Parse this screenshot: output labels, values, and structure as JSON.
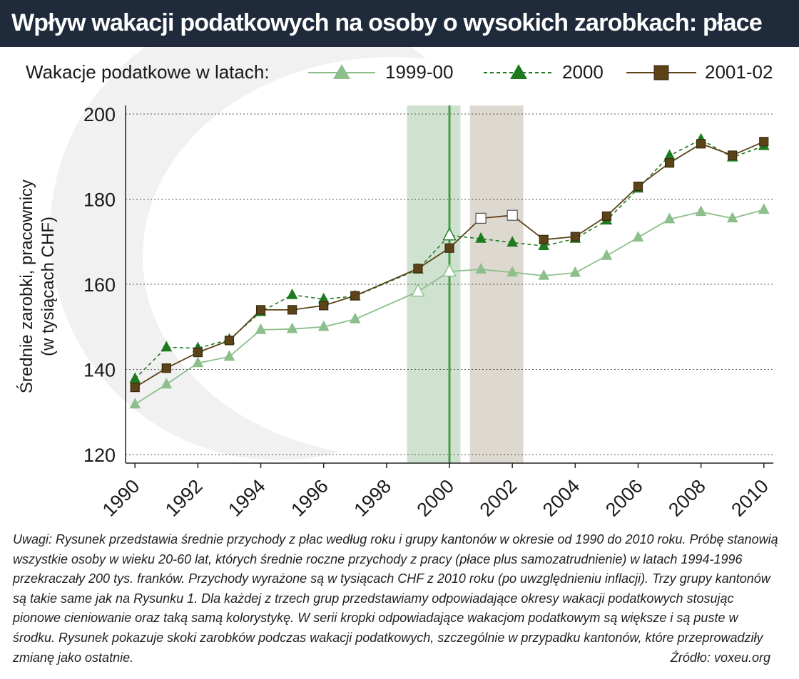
{
  "title": "Wpływ wakacji podatkowych na osoby o wysokich zarobkach: płace",
  "legend": {
    "title": "Wakacje podatkowe w latach:",
    "items": [
      {
        "label": "1999-00",
        "marker": "triangle-light",
        "line": "solid"
      },
      {
        "label": "2000",
        "marker": "triangle-dark",
        "line": "dashed"
      },
      {
        "label": "2001-02",
        "marker": "square-brown",
        "line": "solid"
      }
    ]
  },
  "ylabel_lines": [
    "Średnie zarobki, pracownicy",
    "(w tysiącach CHF)"
  ],
  "notes": "Uwagi: Rysunek przedstawia średnie przychody z płac według roku i grupy kantonów w okresie od 1990 do 2010 roku. Próbę stanowią wszystkie osoby w wieku 20-60 lat, których średnie roczne przychody z pracy (płace plus samozatrudnienie) w latach 1994-1996 przekraczały 200 tys. franków. Przychody wyrażone są w tysiącach CHF z 2010 roku (po uwzględnieniu inflacji). Trzy grupy kantonów są takie same jak na Rysunku 1. Dla każdej z trzech grup przedstawiamy odpowiadające okresy wakacji podatkowych stosując pionowe cieniowanie oraz taką samą kolorystykę. W serii kropki odpowiadające wakacjom podatkowym są większe i są puste w środku. Rysunek pokazuje skoki zarobków podczas wakacji podatkowych, szczególnie w przypadku kantonów, które przeprowadziły zmianę jako ostatnie.",
  "source": "Źródło: voxeu.org",
  "colors": {
    "title_bg": "#1f2a3a",
    "series_light": "#8cbf8c",
    "series_dark": "#1e7a1e",
    "series_brown": "#5c4318",
    "shade_green": "#cfe2cf",
    "shade_gray": "#ddd8d0",
    "vline": "#4c9a4c"
  },
  "chart_data": {
    "type": "line",
    "x": [
      1990,
      1991,
      1992,
      1993,
      1994,
      1995,
      1996,
      1997,
      1998,
      1999,
      2000,
      2001,
      2002,
      2003,
      2004,
      2005,
      2006,
      2007,
      2008,
      2009,
      2010
    ],
    "xticks": [
      1990,
      1992,
      1994,
      1996,
      1998,
      2000,
      2002,
      2004,
      2006,
      2008,
      2010
    ],
    "xtick_labels": [
      "1990",
      "1992",
      "1994",
      "1996",
      "1998",
      "2000",
      "2002",
      "2004",
      "2006",
      "2008",
      "2010"
    ],
    "yticks": [
      120,
      140,
      160,
      180,
      200
    ],
    "ytick_labels": [
      "120",
      "140",
      "160",
      "180",
      "200"
    ],
    "ylim": [
      118,
      202
    ],
    "xlim": [
      1989.7,
      2010.3
    ],
    "ylabel": "Średnie zarobki, pracownicy (w tysiącach CHF)",
    "xlabel": "",
    "grid": "horizontal-dotted",
    "legend_position": "top",
    "shaded_periods": [
      {
        "from": 1998.65,
        "to": 2000.35,
        "color": "green"
      },
      {
        "from": 2000.65,
        "to": 2002.35,
        "color": "gray"
      }
    ],
    "vertical_lines": [
      2000
    ],
    "series": [
      {
        "name": "1999-00",
        "style": "solid",
        "marker": "triangle",
        "color": "light",
        "values": [
          131.8,
          136.5,
          141.5,
          143,
          149.3,
          149.5,
          150,
          151.8,
          null,
          158.3,
          163,
          163.5,
          162.8,
          162,
          162.7,
          166.7,
          171,
          175.3,
          177,
          175.5,
          177.5
        ],
        "hollow_years": [
          1999,
          2000
        ]
      },
      {
        "name": "2000",
        "style": "dashed",
        "marker": "triangle",
        "color": "dark",
        "values": [
          137.8,
          145.2,
          145,
          147,
          153.5,
          157.5,
          156.5,
          157.2,
          null,
          163.5,
          171.5,
          170.7,
          169.8,
          169,
          170.7,
          175,
          182.5,
          190.2,
          194,
          189.8,
          192.5
        ],
        "hollow_years": [
          2000
        ]
      },
      {
        "name": "2001-02",
        "style": "solid",
        "marker": "square",
        "color": "brown",
        "values": [
          135.8,
          140.3,
          144,
          146.8,
          154,
          154,
          155,
          157.3,
          null,
          163.7,
          168.5,
          175.5,
          176.2,
          170.5,
          171.2,
          176,
          183,
          188.5,
          193,
          190.3,
          193.5
        ],
        "hollow_years": [
          2001,
          2002
        ]
      }
    ]
  }
}
